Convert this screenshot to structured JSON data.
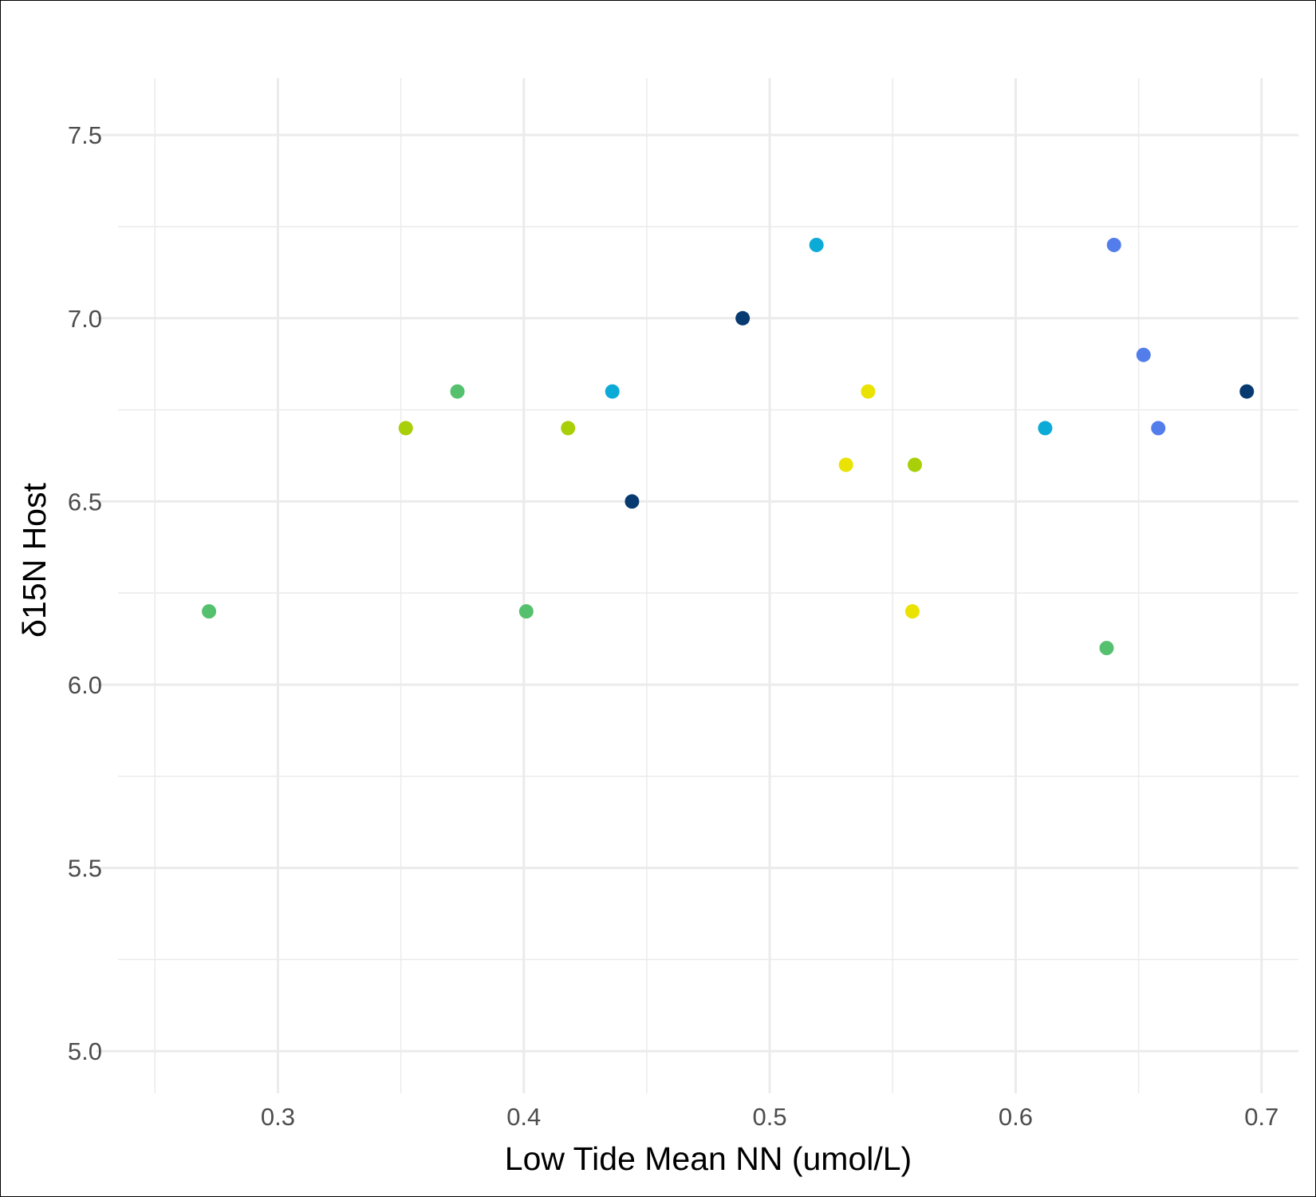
{
  "chart_data": {
    "type": "scatter",
    "title": "",
    "xlabel": "Low Tide Mean NN (umol/L)",
    "ylabel": "δ15N Host",
    "xlim": [
      0.235,
      0.715
    ],
    "ylim": [
      4.885,
      7.655
    ],
    "x_ticks": [
      0.3,
      0.4,
      0.5,
      0.6,
      0.7
    ],
    "x_tick_labels": [
      "0.3",
      "0.4",
      "0.5",
      "0.6",
      "0.7"
    ],
    "x_minor_ticks": [
      0.25,
      0.35,
      0.45,
      0.55,
      0.65
    ],
    "y_ticks": [
      5.0,
      5.5,
      6.0,
      6.5,
      7.0,
      7.5
    ],
    "y_tick_labels": [
      "5.0",
      "5.5",
      "6.0",
      "6.5",
      "7.0",
      "7.5"
    ],
    "y_minor_ticks": [
      5.25,
      5.75,
      6.25,
      6.75,
      7.25
    ],
    "grid": true,
    "legend": "none",
    "points": [
      {
        "x": 0.272,
        "y": 6.2,
        "color": "#55C06D"
      },
      {
        "x": 0.352,
        "y": 6.7,
        "color": "#A8CF07"
      },
      {
        "x": 0.373,
        "y": 6.8,
        "color": "#55C06D"
      },
      {
        "x": 0.401,
        "y": 6.2,
        "color": "#55C06D"
      },
      {
        "x": 0.418,
        "y": 6.7,
        "color": "#A8CF07"
      },
      {
        "x": 0.436,
        "y": 6.8,
        "color": "#0CAAD6"
      },
      {
        "x": 0.444,
        "y": 6.5,
        "color": "#073A70"
      },
      {
        "x": 0.489,
        "y": 7.0,
        "color": "#073A70"
      },
      {
        "x": 0.519,
        "y": 7.2,
        "color": "#0CAAD6"
      },
      {
        "x": 0.531,
        "y": 6.6,
        "color": "#EAE200"
      },
      {
        "x": 0.54,
        "y": 6.8,
        "color": "#EAE200"
      },
      {
        "x": 0.558,
        "y": 6.2,
        "color": "#EAE200"
      },
      {
        "x": 0.559,
        "y": 6.6,
        "color": "#A8CF07"
      },
      {
        "x": 0.612,
        "y": 6.7,
        "color": "#0CAAD6"
      },
      {
        "x": 0.637,
        "y": 6.1,
        "color": "#55C06D"
      },
      {
        "x": 0.64,
        "y": 7.2,
        "color": "#527DEB"
      },
      {
        "x": 0.652,
        "y": 6.9,
        "color": "#527DEB"
      },
      {
        "x": 0.658,
        "y": 6.7,
        "color": "#527DEB"
      },
      {
        "x": 0.694,
        "y": 6.8,
        "color": "#073A70"
      }
    ]
  },
  "colors": {
    "background": "#ffffff",
    "grid_major": "#ebebeb",
    "grid_minor": "#ebebeb",
    "tick_text": "#4d4d4d",
    "title_text": "#000000"
  }
}
